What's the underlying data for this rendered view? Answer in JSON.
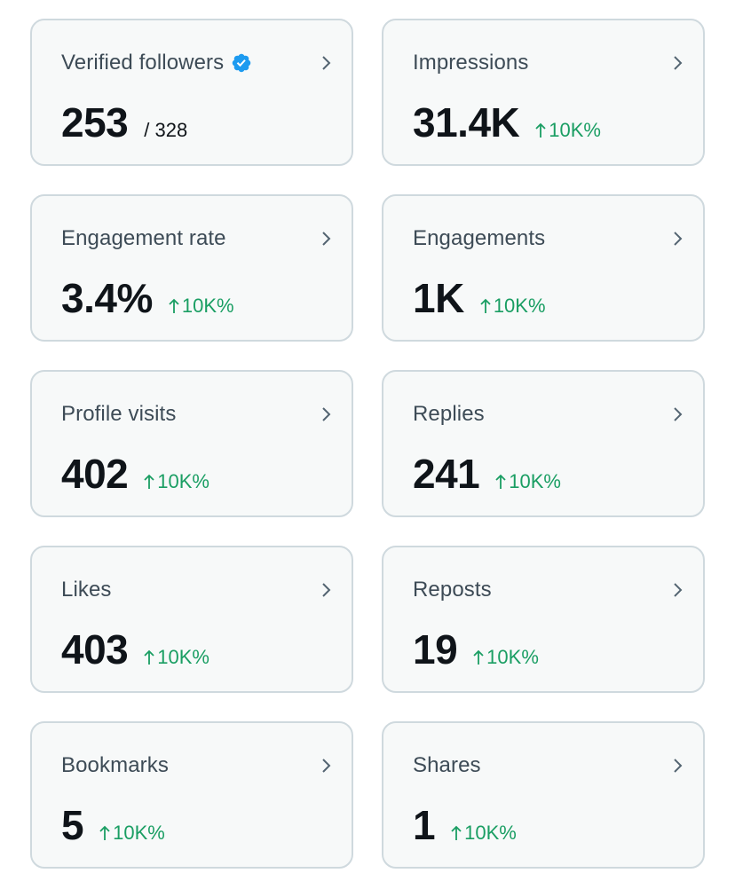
{
  "colors": {
    "card_background": "#f7f9f9",
    "card_border": "#cfd9de",
    "title_text": "#3d4b56",
    "value_text": "#0f1419",
    "positive_change": "#1a9e63",
    "verified_badge": "#1d9bf0",
    "chevron": "#536471"
  },
  "cards": [
    {
      "title": "Verified followers",
      "value": "253",
      "total": "/ 328",
      "verified_icon": "verified-badge-icon"
    },
    {
      "title": "Impressions",
      "value": "31.4K",
      "change": "10K%"
    },
    {
      "title": "Engagement rate",
      "value": "3.4%",
      "change": "10K%"
    },
    {
      "title": "Engagements",
      "value": "1K",
      "change": "10K%"
    },
    {
      "title": "Profile visits",
      "value": "402",
      "change": "10K%"
    },
    {
      "title": "Replies",
      "value": "241",
      "change": "10K%"
    },
    {
      "title": "Likes",
      "value": "403",
      "change": "10K%"
    },
    {
      "title": "Reposts",
      "value": "19",
      "change": "10K%"
    },
    {
      "title": "Bookmarks",
      "value": "5",
      "change": "10K%"
    },
    {
      "title": "Shares",
      "value": "1",
      "change": "10K%"
    }
  ]
}
